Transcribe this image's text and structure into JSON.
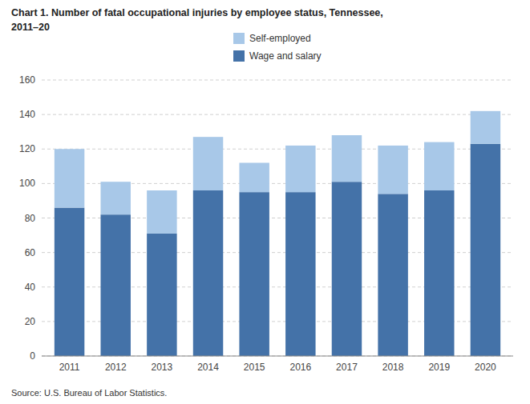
{
  "chart_data": {
    "type": "bar",
    "stacked": true,
    "title": [
      "Chart 1. Number of fatal occupational injuries by employee status, Tennessee,",
      "2011–20"
    ],
    "annotations": [
      "Source: U.S. Bureau of Labor Statistics."
    ],
    "categories": [
      "2011",
      "2012",
      "2013",
      "2014",
      "2015",
      "2016",
      "2017",
      "2018",
      "2019",
      "2020"
    ],
    "series": [
      {
        "name": "Wage and salary",
        "color": "#4472A8",
        "values": [
          86,
          82,
          71,
          96,
          95,
          95,
          101,
          94,
          96,
          123
        ]
      },
      {
        "name": "Self-employed",
        "color": "#A8C8E8",
        "values": [
          34,
          19,
          25,
          31,
          17,
          27,
          27,
          28,
          28,
          19
        ]
      }
    ],
    "ylim": [
      0,
      160
    ],
    "yticks": [
      0,
      20,
      40,
      60,
      80,
      100,
      120,
      140,
      160
    ],
    "grid": true,
    "legend": "top"
  }
}
